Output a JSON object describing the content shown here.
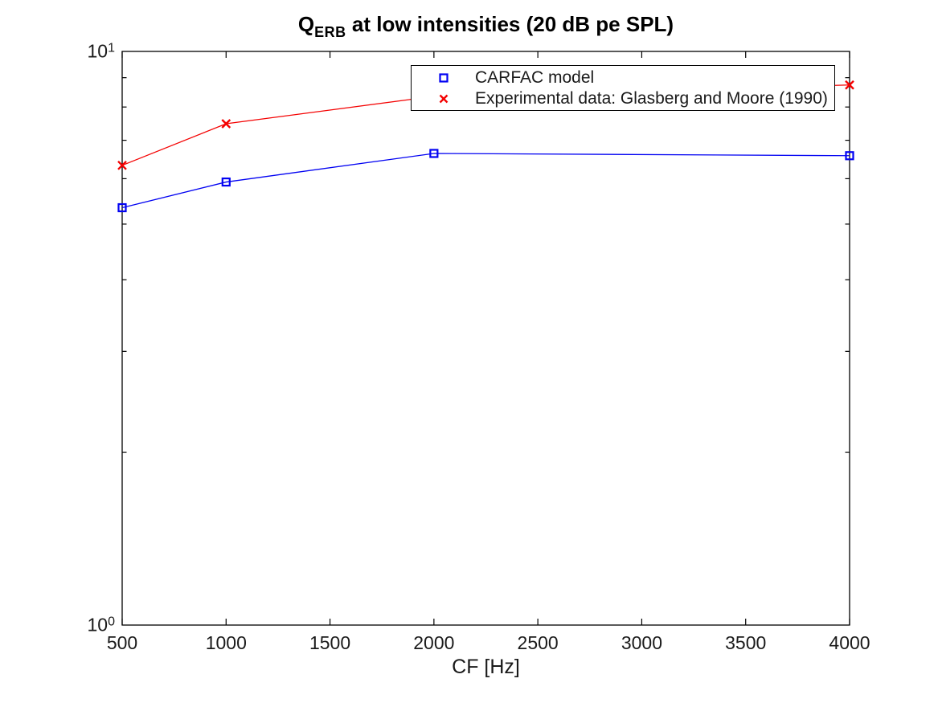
{
  "figure": {
    "title": {
      "prefix": "Q",
      "subscript": "ERB",
      "suffix": " at low intensities (20 dB pe SPL)"
    }
  },
  "legend": {
    "position": "north-inside",
    "items": [
      {
        "label": "CARFAC model",
        "marker": "open-square",
        "color": "#0202f2"
      },
      {
        "label": "Experimental data: Glasberg and Moore (1990)",
        "marker": "x-cross",
        "color": "#f40202"
      }
    ]
  },
  "chart_data": {
    "type": "line",
    "title": "Q_ERB at low intensities (20 dB pe SPL)",
    "xlabel": "CF [Hz]",
    "ylabel": "",
    "x_scale": "linear",
    "y_scale": "log10",
    "xlim": [
      500,
      4000
    ],
    "ylim": [
      1,
      10
    ],
    "x_ticks": [
      500,
      1000,
      1500,
      2000,
      2500,
      3000,
      3500,
      4000
    ],
    "y_major_ticks": [
      {
        "value": 1,
        "base": "10",
        "exp": "0"
      },
      {
        "value": 10,
        "base": "10",
        "exp": "1"
      }
    ],
    "y_minor_ticks": [
      2,
      3,
      4,
      5,
      6,
      7,
      8,
      9
    ],
    "grid": false,
    "box": true,
    "x": [
      500,
      1000,
      2000,
      4000
    ],
    "series": [
      {
        "name": "CARFAC model",
        "marker": "open-square",
        "color": "#0202f2",
        "values": [
          5.34,
          5.92,
          6.64,
          6.58
        ]
      },
      {
        "name": "Experimental data: Glasberg and Moore (1990)",
        "marker": "x-cross",
        "color": "#f40202",
        "values": [
          6.33,
          7.48,
          8.35,
          8.74
        ]
      }
    ],
    "occlusion_note": "marker of series 2 at x=2000 is hidden behind the legend box"
  }
}
